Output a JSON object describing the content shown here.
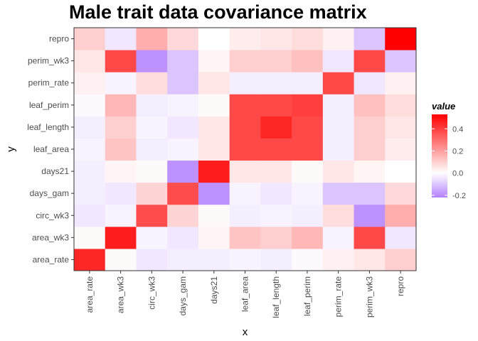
{
  "chart_data": {
    "type": "heatmap",
    "title": "Male trait data covariance matrix",
    "xlabel": "x",
    "ylabel": "y",
    "categories": [
      "area_rate",
      "area_wk3",
      "circ_wk3",
      "days_gam",
      "days21",
      "leaf_area",
      "leaf_length",
      "leaf_perim",
      "perim_rate",
      "perim_wk3",
      "repro"
    ],
    "values": [
      [
        0.45,
        0.01,
        -0.04,
        -0.03,
        -0.03,
        -0.02,
        -0.03,
        -0.01,
        0.03,
        0.05,
        0.1
      ],
      [
        0.01,
        0.47,
        -0.02,
        -0.04,
        0.02,
        0.12,
        0.1,
        0.15,
        -0.02,
        0.38,
        -0.04
      ],
      [
        -0.04,
        -0.02,
        0.37,
        0.09,
        0.01,
        -0.03,
        -0.02,
        -0.03,
        0.07,
        -0.19,
        0.17
      ],
      [
        -0.03,
        -0.04,
        0.09,
        0.37,
        -0.19,
        -0.02,
        -0.04,
        -0.02,
        -0.1,
        -0.1,
        0.08
      ],
      [
        -0.03,
        0.02,
        0.01,
        -0.19,
        0.47,
        0.05,
        0.05,
        0.01,
        0.05,
        0.02,
        0.0
      ],
      [
        -0.02,
        0.12,
        -0.03,
        -0.02,
        0.05,
        0.38,
        0.38,
        0.38,
        -0.03,
        0.1,
        0.04
      ],
      [
        -0.03,
        0.1,
        -0.02,
        -0.04,
        0.05,
        0.38,
        0.45,
        0.38,
        -0.03,
        0.1,
        0.05
      ],
      [
        -0.01,
        0.15,
        -0.03,
        -0.02,
        0.01,
        0.38,
        0.38,
        0.4,
        -0.03,
        0.13,
        0.07
      ],
      [
        0.03,
        -0.02,
        0.07,
        -0.1,
        0.05,
        -0.03,
        -0.03,
        -0.03,
        0.38,
        -0.04,
        0.03
      ],
      [
        0.05,
        0.38,
        -0.19,
        -0.1,
        0.02,
        0.1,
        0.1,
        0.13,
        -0.04,
        0.38,
        -0.1
      ],
      [
        0.1,
        -0.04,
        0.17,
        0.08,
        0.0,
        0.04,
        0.05,
        0.07,
        0.03,
        -0.1,
        0.53
      ]
    ],
    "grid": false,
    "legend": {
      "title": "value",
      "ticks": [
        0.4,
        0.2,
        0.0,
        -0.2
      ],
      "tick_labels": [
        "0.4",
        "0.2",
        "0.0",
        "-0.2"
      ],
      "range": [
        -0.22,
        0.53
      ],
      "position": "right"
    },
    "colors": {
      "low": "#b380ff",
      "mid": "#ffffff",
      "high": "#ff0000"
    }
  }
}
